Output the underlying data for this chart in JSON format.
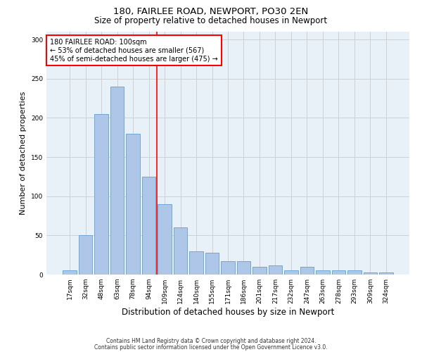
{
  "title": "180, FAIRLEE ROAD, NEWPORT, PO30 2EN",
  "subtitle": "Size of property relative to detached houses in Newport",
  "xlabel": "Distribution of detached houses by size in Newport",
  "ylabel": "Number of detached properties",
  "categories": [
    "17sqm",
    "32sqm",
    "48sqm",
    "63sqm",
    "78sqm",
    "94sqm",
    "109sqm",
    "124sqm",
    "140sqm",
    "155sqm",
    "171sqm",
    "186sqm",
    "201sqm",
    "217sqm",
    "232sqm",
    "247sqm",
    "263sqm",
    "278sqm",
    "293sqm",
    "309sqm",
    "324sqm"
  ],
  "values": [
    5,
    50,
    205,
    240,
    180,
    125,
    90,
    60,
    30,
    28,
    17,
    17,
    10,
    12,
    5,
    10,
    5,
    5,
    5,
    3,
    3
  ],
  "bar_color": "#aec6e8",
  "bar_edge_color": "#6fa8d4",
  "vline_x": 5.5,
  "vline_color": "red",
  "annotation_line1": "180 FAIRLEE ROAD: 100sqm",
  "annotation_line2": "← 53% of detached houses are smaller (567)",
  "annotation_line3": "45% of semi-detached houses are larger (475) →",
  "annotation_box_color": "white",
  "annotation_box_edgecolor": "red",
  "ylim": [
    0,
    310
  ],
  "yticks": [
    0,
    50,
    100,
    150,
    200,
    250,
    300
  ],
  "grid_color": "#cccccc",
  "bg_color": "#e8f0f8",
  "footer1": "Contains HM Land Registry data © Crown copyright and database right 2024.",
  "footer2": "Contains public sector information licensed under the Open Government Licence v3.0.",
  "title_fontsize": 9.5,
  "subtitle_fontsize": 8.5,
  "tick_fontsize": 6.5,
  "ylabel_fontsize": 8,
  "xlabel_fontsize": 8.5,
  "annotation_fontsize": 7,
  "footer_fontsize": 5.5
}
